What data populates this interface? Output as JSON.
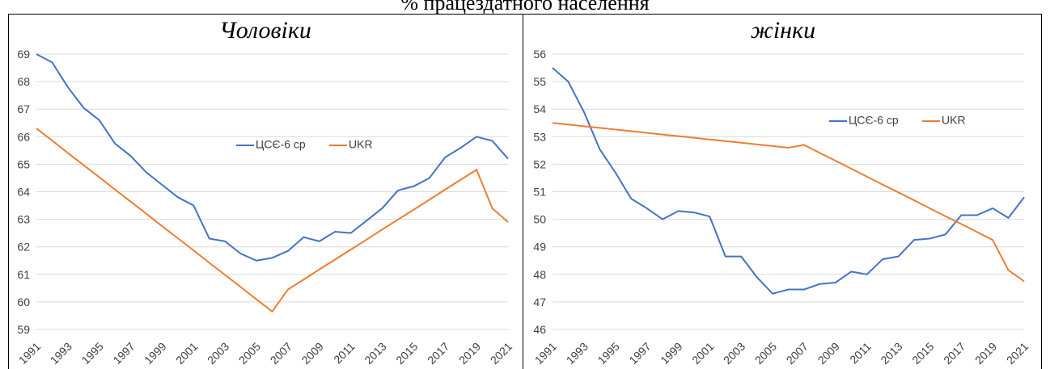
{
  "title": "% працездатного населення",
  "chart_data": [
    {
      "type": "line",
      "title": "Чоловіки",
      "categories": [
        "1991",
        null,
        "1993",
        null,
        "1995",
        null,
        "1997",
        null,
        "1999",
        null,
        "2001",
        null,
        "2003",
        null,
        "2005",
        null,
        "2007",
        null,
        "2009",
        null,
        "2011",
        null,
        "2013",
        null,
        "2015",
        null,
        "2017",
        null,
        "2019",
        null,
        "2021"
      ],
      "series": [
        {
          "name": "ЦСЄ-6 ср",
          "color": "#4472c4",
          "values": [
            69.0,
            68.7,
            67.8,
            67.05,
            66.6,
            65.75,
            65.3,
            64.7,
            64.25,
            63.8,
            63.5,
            62.3,
            62.2,
            61.75,
            61.5,
            61.6,
            61.85,
            62.35,
            62.2,
            62.55,
            62.5,
            62.95,
            63.4,
            64.05,
            64.2,
            64.5,
            65.25,
            65.6,
            66.0,
            65.85,
            65.2
          ]
        },
        {
          "name": "UKR",
          "color": "#ed7d31",
          "values": [
            66.3,
            65.86,
            65.41,
            64.97,
            64.53,
            64.08,
            63.64,
            63.2,
            62.75,
            62.31,
            61.87,
            61.42,
            60.98,
            60.54,
            60.09,
            59.65,
            60.45,
            60.81,
            61.18,
            61.54,
            61.9,
            62.26,
            62.63,
            62.99,
            63.35,
            63.71,
            64.08,
            64.44,
            64.8,
            63.4,
            62.9
          ]
        }
      ],
      "ylim": [
        59,
        69
      ],
      "yticks": [
        59,
        60,
        61,
        62,
        63,
        64,
        65,
        66,
        67,
        68,
        69
      ],
      "grid": true
    },
    {
      "type": "line",
      "title": "жінки",
      "categories": [
        "1991",
        null,
        "1993",
        null,
        "1995",
        null,
        "1997",
        null,
        "1999",
        null,
        "2001",
        null,
        "2003",
        null,
        "2005",
        null,
        "2007",
        null,
        "2009",
        null,
        "2011",
        null,
        "2013",
        null,
        "2015",
        null,
        "2017",
        null,
        "2019",
        null,
        "2021"
      ],
      "series": [
        {
          "name": "ЦСЄ-6 ср",
          "color": "#4472c4",
          "values": [
            55.5,
            55.0,
            53.9,
            52.55,
            51.7,
            50.75,
            50.4,
            50.0,
            50.3,
            50.25,
            50.1,
            48.65,
            48.65,
            47.9,
            47.3,
            47.45,
            47.45,
            47.65,
            47.7,
            48.1,
            48.0,
            48.55,
            48.65,
            49.25,
            49.3,
            49.45,
            50.15,
            50.15,
            50.4,
            50.05,
            50.8
          ]
        },
        {
          "name": "UKR",
          "color": "#ed7d31",
          "values": [
            53.5,
            53.44,
            53.38,
            53.32,
            53.26,
            53.2,
            53.14,
            53.08,
            53.02,
            52.96,
            52.9,
            52.84,
            52.78,
            52.72,
            52.66,
            52.6,
            52.7,
            52.41,
            52.13,
            51.84,
            51.55,
            51.26,
            50.98,
            50.69,
            50.4,
            50.11,
            49.83,
            49.54,
            49.25,
            48.15,
            47.75
          ]
        }
      ],
      "ylim": [
        46,
        56
      ],
      "yticks": [
        46,
        47,
        48,
        49,
        50,
        51,
        52,
        53,
        54,
        55,
        56
      ],
      "grid": true
    }
  ]
}
